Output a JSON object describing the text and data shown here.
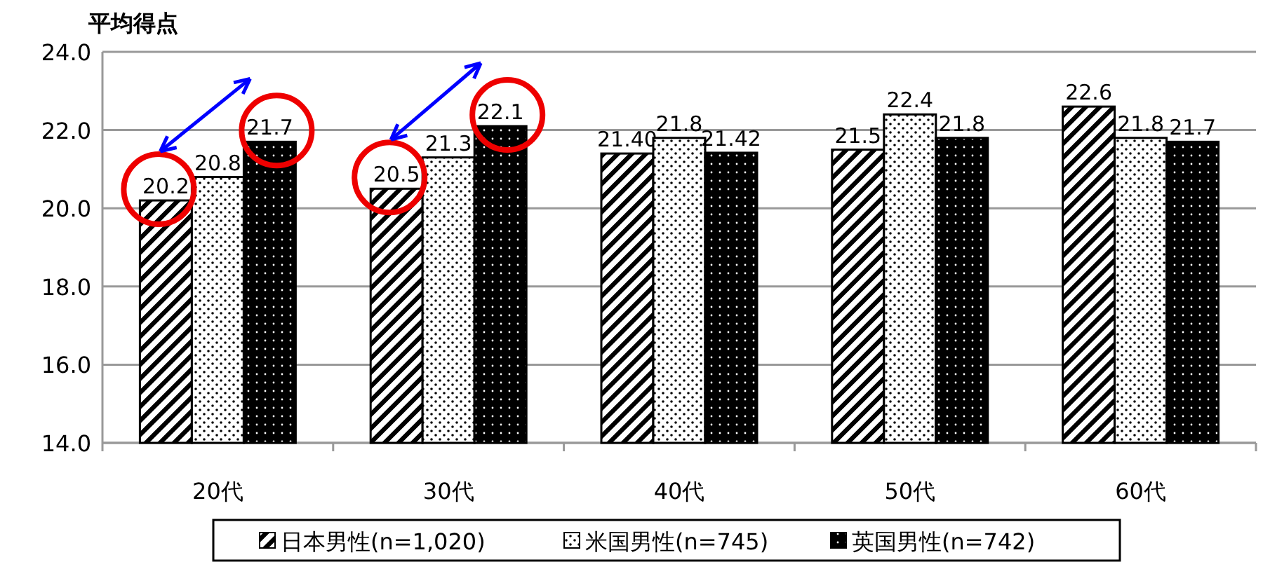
{
  "chart_data": {
    "type": "bar",
    "ylabel": "平均得点",
    "categories": [
      "20代",
      "30代",
      "40代",
      "50代",
      "60代"
    ],
    "series": [
      {
        "name": "日本男性(n=1,020)",
        "color": "#000000",
        "values": [
          20.2,
          20.5,
          21.4,
          21.5,
          22.6
        ],
        "value_labels": [
          "20.2",
          "20.5",
          "21.40",
          "21.5",
          "22.6"
        ]
      },
      {
        "name": "米国男性(n=745)",
        "color": "#000000",
        "values": [
          20.8,
          21.3,
          21.8,
          22.4,
          21.8
        ],
        "value_labels": [
          "20.8",
          "21.3",
          "21.8",
          "22.4",
          "21.8"
        ]
      },
      {
        "name": "英国男性(n=742)",
        "color": "#000000",
        "values": [
          21.7,
          22.1,
          21.42,
          21.8,
          21.7
        ],
        "value_labels": [
          "21.7",
          "22.1",
          "21.42",
          "21.8",
          "21.7"
        ]
      }
    ],
    "ylim": [
      14,
      24
    ],
    "yticks": [
      {
        "value": 14,
        "label": "14.0"
      },
      {
        "value": 16,
        "label": "16.0"
      },
      {
        "value": 18,
        "label": "18.0"
      },
      {
        "value": 20,
        "label": "20.0"
      },
      {
        "value": 22,
        "label": "22.0"
      },
      {
        "value": 24,
        "label": "24.0"
      }
    ],
    "grid": "y",
    "legend": "bottom"
  }
}
